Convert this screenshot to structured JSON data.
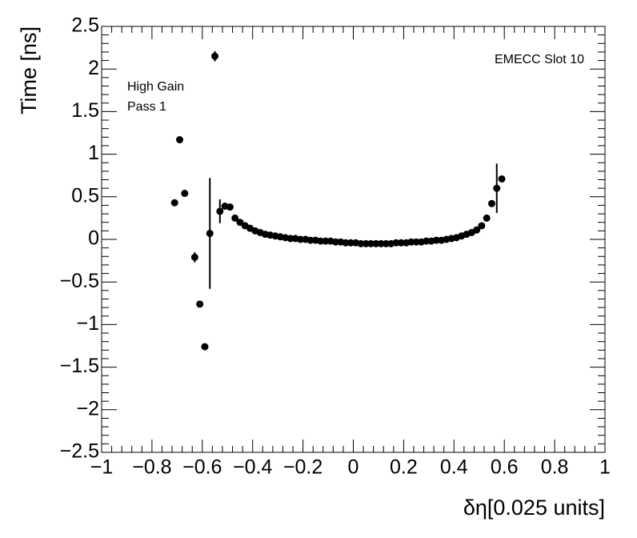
{
  "chart_data": {
    "type": "scatter",
    "x_label": "δη[0.025 units]",
    "y_label": "Time [ns]",
    "annotations": [
      "EMECC Slot 10",
      "High Gain",
      "Pass 1"
    ],
    "color": "#000000",
    "xlim": [
      -1,
      1
    ],
    "ylim": [
      -2.5,
      2.5
    ],
    "xticks": [
      {
        "value": -1,
        "label": "−1"
      },
      {
        "value": -0.8,
        "label": "−0.8"
      },
      {
        "value": -0.6,
        "label": "−0.6"
      },
      {
        "value": -0.4,
        "label": "−0.4"
      },
      {
        "value": -0.2,
        "label": "−0.2"
      },
      0,
      0.2,
      0.4,
      0.6,
      0.8,
      1
    ],
    "yticks": [
      {
        "value": -2.5,
        "label": "−2.5"
      },
      {
        "value": -2,
        "label": "−2"
      },
      {
        "value": -1.5,
        "label": "−1.5"
      },
      {
        "value": -1,
        "label": "−1"
      },
      {
        "value": -0.5,
        "label": "−0.5"
      },
      0,
      0.5,
      1,
      1.5,
      2,
      2.5
    ],
    "x": [
      -0.71,
      -0.69,
      -0.67,
      -0.63,
      -0.61,
      -0.59,
      -0.57,
      -0.55,
      -0.53,
      -0.51,
      -0.49,
      -0.47,
      -0.45,
      -0.43,
      -0.41,
      -0.39,
      -0.37,
      -0.35,
      -0.33,
      -0.31,
      -0.29,
      -0.27,
      -0.25,
      -0.23,
      -0.21,
      -0.19,
      -0.17,
      -0.15,
      -0.13,
      -0.11,
      -0.09,
      -0.07,
      -0.05,
      -0.03,
      -0.01,
      0.01,
      0.03,
      0.05,
      0.07,
      0.09,
      0.11,
      0.13,
      0.15,
      0.17,
      0.19,
      0.21,
      0.23,
      0.25,
      0.27,
      0.29,
      0.31,
      0.33,
      0.35,
      0.37,
      0.39,
      0.41,
      0.43,
      0.45,
      0.47,
      0.49,
      0.51,
      0.53,
      0.55,
      0.57,
      0.59
    ],
    "values": [
      0.43,
      1.17,
      0.54,
      -0.21,
      -0.76,
      -1.26,
      0.07,
      2.15,
      0.33,
      0.39,
      0.38,
      0.25,
      0.2,
      0.16,
      0.13,
      0.1,
      0.08,
      0.06,
      0.05,
      0.04,
      0.03,
      0.02,
      0.01,
      0.01,
      0,
      0,
      -0.01,
      -0.01,
      -0.02,
      -0.02,
      -0.02,
      -0.03,
      -0.03,
      -0.04,
      -0.04,
      -0.04,
      -0.05,
      -0.05,
      -0.05,
      -0.05,
      -0.05,
      -0.05,
      -0.05,
      -0.04,
      -0.04,
      -0.04,
      -0.03,
      -0.03,
      -0.03,
      -0.02,
      -0.02,
      -0.01,
      -0.01,
      0,
      0.01,
      0.02,
      0.04,
      0.06,
      0.08,
      0.11,
      0.16,
      0.25,
      0.42,
      0.6,
      0.71
    ],
    "errors": [
      0.02,
      0.02,
      0.02,
      0.06,
      0.02,
      0.02,
      0.65,
      0.06,
      0.14,
      0.04,
      0.02,
      0.02,
      0.01,
      0.01,
      0.01,
      0.01,
      0.01,
      0.01,
      0.01,
      0.01,
      0.01,
      0.01,
      0.01,
      0.01,
      0.01,
      0.01,
      0.01,
      0.01,
      0.01,
      0.01,
      0.01,
      0.01,
      0.01,
      0.01,
      0.01,
      0.01,
      0.01,
      0.01,
      0.01,
      0.01,
      0.01,
      0.01,
      0.01,
      0.01,
      0.01,
      0.01,
      0.01,
      0.01,
      0.01,
      0.01,
      0.01,
      0.01,
      0.01,
      0.01,
      0.01,
      0.01,
      0.01,
      0.01,
      0.01,
      0.01,
      0.01,
      0.01,
      0.03,
      0.29,
      0.02
    ]
  }
}
